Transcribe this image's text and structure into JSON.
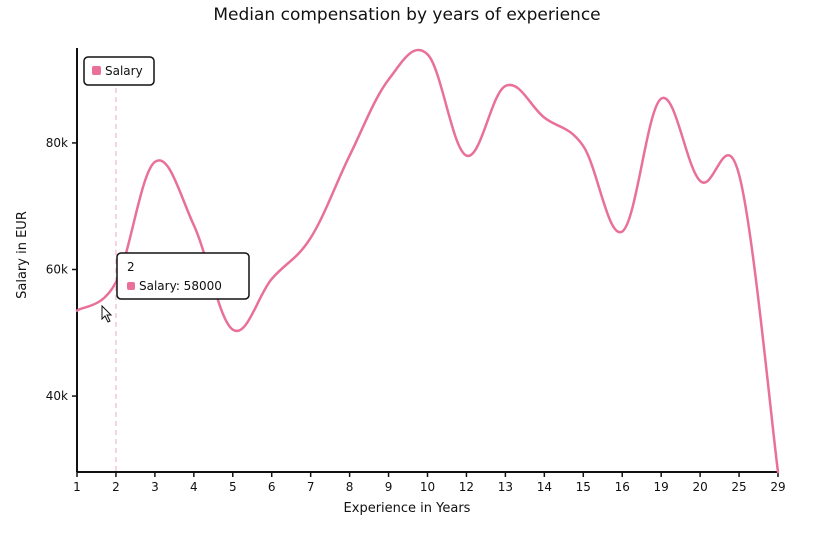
{
  "chart_data": {
    "type": "line",
    "title": "Median compensation by years of experience",
    "xlabel": "Experience in Years",
    "ylabel": "Salary in EUR",
    "categories": [
      "1",
      "2",
      "3",
      "4",
      "5",
      "6",
      "7",
      "8",
      "9",
      "10",
      "12",
      "13",
      "14",
      "15",
      "16",
      "19",
      "20",
      "25",
      "29"
    ],
    "series": [
      {
        "name": "Salary",
        "color": "#e8709b",
        "values": [
          53500,
          58000,
          77000,
          67000,
          50500,
          58500,
          65000,
          78000,
          90000,
          94000,
          78000,
          89000,
          84000,
          79500,
          66000,
          87000,
          74000,
          75000,
          28000
        ]
      }
    ],
    "ylim": [
      28000,
      95000
    ],
    "yticks": [
      {
        "value": 40000,
        "label": "40k"
      },
      {
        "value": 60000,
        "label": "60k"
      },
      {
        "value": 80000,
        "label": "80k"
      }
    ],
    "grid": false,
    "legend_position": "top-left",
    "tooltip": {
      "category": "2",
      "title": "2",
      "label": "Salary: 58000"
    }
  }
}
